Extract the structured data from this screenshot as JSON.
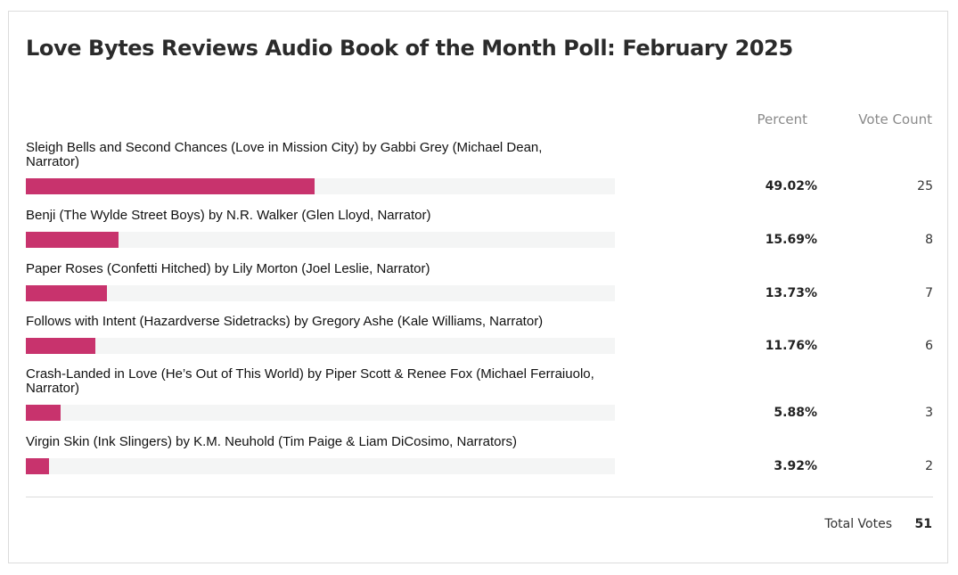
{
  "poll": {
    "title": "Love Bytes Reviews Audio Book of the Month Poll: February 2025",
    "columns": {
      "percent": "Percent",
      "votes": "Vote Count"
    },
    "accent_color": "#c8336d",
    "options": [
      {
        "label": "Sleigh Bells and Second Chances (Love in Mission City) by Gabbi Grey (Michael Dean, Narrator)",
        "percent_text": "49.02%",
        "percent": 49.02,
        "votes": "25"
      },
      {
        "label": "Benji (The Wylde Street Boys) by N.R. Walker (Glen Lloyd, Narrator)",
        "percent_text": "15.69%",
        "percent": 15.69,
        "votes": "8"
      },
      {
        "label": "Paper Roses (Confetti Hitched) by Lily Morton (Joel Leslie, Narrator)",
        "percent_text": "13.73%",
        "percent": 13.73,
        "votes": "7"
      },
      {
        "label": "Follows with Intent (Hazardverse Sidetracks) by Gregory Ashe (Kale Williams, Narrator)",
        "percent_text": "11.76%",
        "percent": 11.76,
        "votes": "6"
      },
      {
        "label": "Crash-Landed in Love (He’s Out of This World) by Piper Scott & Renee Fox (Michael Ferraiuolo, Narrator)",
        "percent_text": "5.88%",
        "percent": 5.88,
        "votes": "3"
      },
      {
        "label": "Virgin Skin (Ink Slingers) by K.M. Neuhold (Tim Paige & Liam DiCosimo, Narrators)",
        "percent_text": "3.92%",
        "percent": 3.92,
        "votes": "2"
      }
    ],
    "total": {
      "label": "Total Votes",
      "value": "51"
    }
  }
}
